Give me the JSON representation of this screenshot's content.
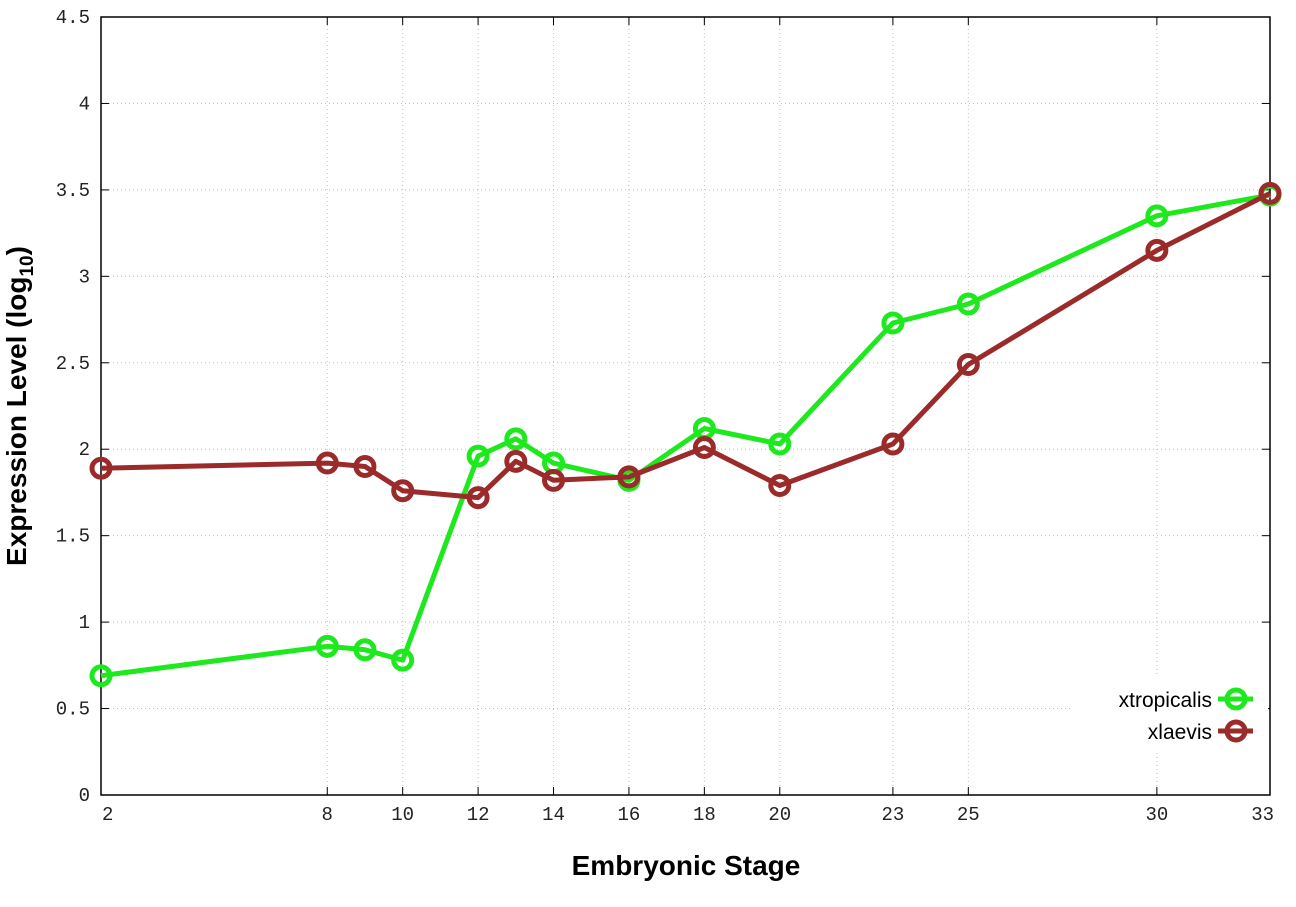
{
  "chart_data": {
    "type": "line",
    "title": "",
    "xlabel": "Embryonic Stage",
    "ylabel_main": "Expression Level (log",
    "ylabel_sub": "10",
    "ylabel_close": ")",
    "x": [
      2,
      8,
      9,
      10,
      12,
      13,
      14,
      16,
      18,
      20,
      23,
      25,
      30,
      33
    ],
    "x_ticks": [
      2,
      8,
      10,
      12,
      14,
      16,
      18,
      20,
      23,
      25,
      30,
      33
    ],
    "x_tick_labels": [
      "2",
      "8",
      "10",
      "12",
      "14",
      "16",
      "18",
      "20",
      "23",
      "25",
      "30",
      "33"
    ],
    "y_ticks": [
      0,
      0.5,
      1,
      1.5,
      2,
      2.5,
      3,
      3.5,
      4,
      4.5
    ],
    "y_tick_labels": [
      "0",
      "0.5",
      "1",
      "1.5",
      "2",
      "2.5",
      "3",
      "3.5",
      "4",
      "4.5"
    ],
    "xlim": [
      2,
      33
    ],
    "ylim": [
      0,
      4.5
    ],
    "grid": true,
    "legend_position": "bottom-right",
    "series": [
      {
        "name": "xtropicalis",
        "color": "#1ee81e",
        "values": [
          0.69,
          0.86,
          0.84,
          0.78,
          1.96,
          2.06,
          1.92,
          1.82,
          2.12,
          2.03,
          2.73,
          2.84,
          3.35,
          3.47
        ]
      },
      {
        "name": "xlaevis",
        "color": "#9b2a2a",
        "values": [
          1.89,
          1.92,
          1.9,
          1.76,
          1.72,
          1.93,
          1.82,
          1.84,
          2.01,
          1.79,
          2.03,
          2.49,
          3.15,
          3.48
        ]
      }
    ]
  }
}
